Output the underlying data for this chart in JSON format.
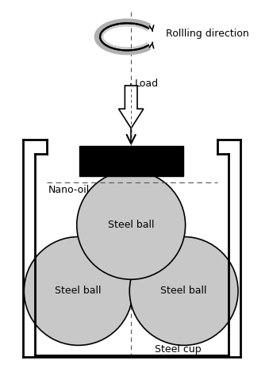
{
  "bg_color": "#ffffff",
  "ball_color": "#c8c8c8",
  "ball_edge_color": "#000000",
  "block_color": "#000000",
  "cup_color": "#000000",
  "dashed_line_color": "#555555",
  "title": "",
  "labels": {
    "rolling": "Rollling direction",
    "load": "Load",
    "nano_oil": "Nano-oil",
    "steel_ball_top": "Steel ball",
    "steel_ball_left": "Steel ball",
    "steel_ball_right": "Steel ball",
    "steel_cup": "Steel cup"
  },
  "fig_width": 3.39,
  "fig_height": 4.69,
  "dpi": 100
}
